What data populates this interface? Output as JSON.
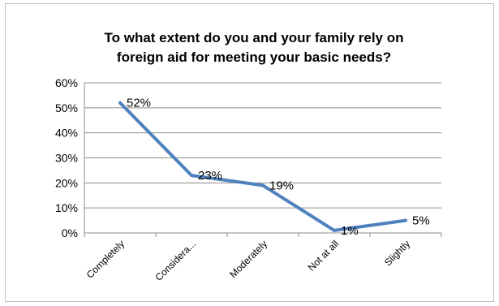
{
  "chart_data": {
    "type": "line",
    "title_lines": [
      "To what extent do you and your family rely on",
      "foreign aid for meeting your basic needs?"
    ],
    "categories": [
      "Completely",
      "Considera...",
      "Moderately",
      "Not at all",
      "Slightly"
    ],
    "values": [
      52,
      23,
      19,
      1,
      5
    ],
    "data_labels": [
      "52%",
      "23%",
      "19%",
      "1%",
      "5%"
    ],
    "y_ticks": [
      "0%",
      "10%",
      "20%",
      "30%",
      "40%",
      "50%",
      "60%"
    ],
    "ylim": [
      0,
      60
    ],
    "grid": true,
    "legend": false,
    "line_color": "#4f81bd"
  }
}
